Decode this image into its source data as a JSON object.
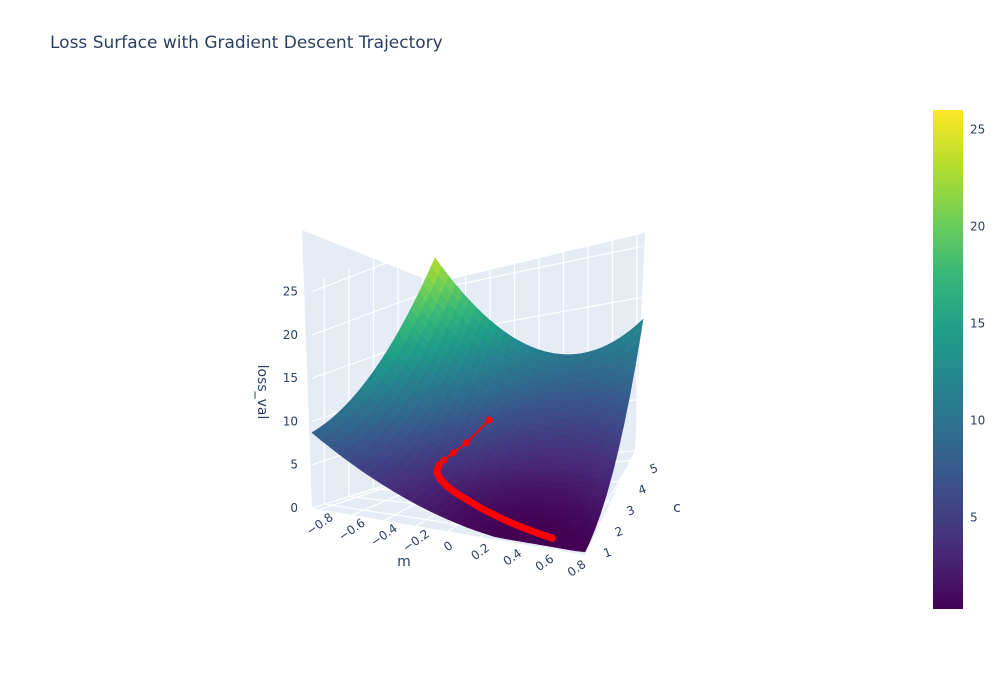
{
  "chart_data": {
    "type": "surface",
    "title": "Loss Surface with Gradient Descent Trajectory",
    "axes": {
      "x": {
        "label": "m",
        "ticks": [
          "−0.8",
          "−0.6",
          "−0.4",
          "−0.2",
          "0",
          "0.2",
          "0.4",
          "0.6",
          "0.8"
        ],
        "range": [
          -0.85,
          0.85
        ]
      },
      "y": {
        "label": "c",
        "ticks": [
          "1",
          "2",
          "3",
          "4",
          "5"
        ],
        "range": [
          0.5,
          5.5
        ]
      },
      "z": {
        "label": "loss_val",
        "ticks": [
          "0",
          "5",
          "10",
          "15",
          "20",
          "25"
        ],
        "range": [
          0,
          26
        ]
      }
    },
    "colorbar": {
      "colorscale": "Viridis",
      "range": [
        0.3,
        26
      ],
      "ticks": [
        "5",
        "10",
        "15",
        "20",
        "25"
      ],
      "colors": [
        "#440154",
        "#482878",
        "#3e4989",
        "#31688e",
        "#26828e",
        "#1f9e89",
        "#35b779",
        "#6ece58",
        "#b5de2b",
        "#fde725"
      ]
    },
    "trajectory": {
      "color": "#ff0000",
      "points": [
        {
          "m": -0.2,
          "c": 4.2,
          "loss": 6.2
        },
        {
          "m": -0.28,
          "c": 3.6,
          "loss": 4.6
        },
        {
          "m": -0.33,
          "c": 3.3,
          "loss": 3.9
        },
        {
          "m": -0.36,
          "c": 3.05,
          "loss": 3.4
        },
        {
          "m": -0.37,
          "c": 2.9,
          "loss": 3.1
        },
        {
          "m": -0.36,
          "c": 2.7,
          "loss": 2.6
        },
        {
          "m": -0.3,
          "c": 2.45,
          "loss": 2.2
        },
        {
          "m": -0.22,
          "c": 2.2,
          "loss": 1.85
        },
        {
          "m": -0.12,
          "c": 1.95,
          "loss": 1.55
        },
        {
          "m": -0.02,
          "c": 1.75,
          "loss": 1.3
        },
        {
          "m": 0.08,
          "c": 1.55,
          "loss": 1.05
        },
        {
          "m": 0.18,
          "c": 1.38,
          "loss": 0.85
        },
        {
          "m": 0.28,
          "c": 1.22,
          "loss": 0.68
        },
        {
          "m": 0.38,
          "c": 1.08,
          "loss": 0.55
        },
        {
          "m": 0.48,
          "c": 0.96,
          "loss": 0.45
        },
        {
          "m": 0.56,
          "c": 0.88,
          "loss": 0.38
        },
        {
          "m": 0.62,
          "c": 0.82,
          "loss": 0.34
        }
      ]
    }
  }
}
